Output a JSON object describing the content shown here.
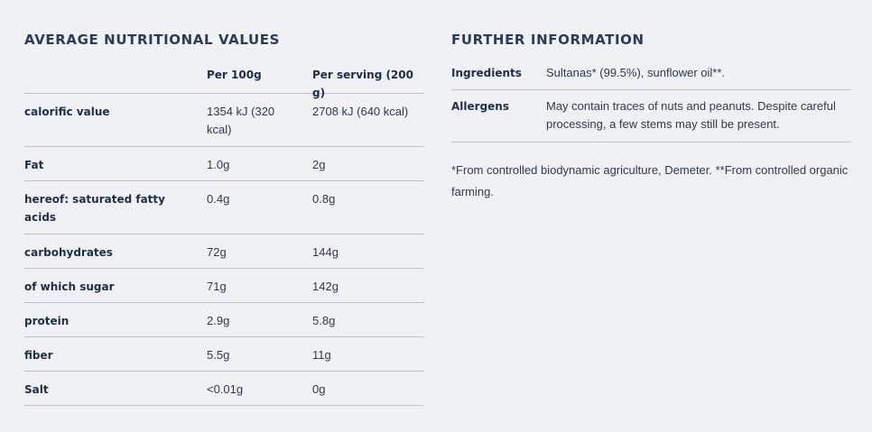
{
  "nutrition": {
    "title": "AVERAGE NUTRITIONAL VALUES",
    "headers": [
      "",
      "Per 100g",
      "Per serving (200 g)"
    ],
    "rows": [
      {
        "name": "calorific value",
        "per100": "1354 kJ (320 kcal)",
        "serving": "2708 kJ (640 kcal)"
      },
      {
        "name": "Fat",
        "per100": "1.0g",
        "serving": "2g"
      },
      {
        "name": "hereof: saturated fatty acids",
        "per100": "0.4g",
        "serving": "0.8g"
      },
      {
        "name": "carbohydrates",
        "per100": "72g",
        "serving": "144g"
      },
      {
        "name": "of which sugar",
        "per100": "71g",
        "serving": "142g"
      },
      {
        "name": "protein",
        "per100": "2.9g",
        "serving": "5.8g"
      },
      {
        "name": "fiber",
        "per100": "5.5g",
        "serving": "11g"
      },
      {
        "name": "Salt",
        "per100": "<0.01g",
        "serving": "0g"
      }
    ]
  },
  "further": {
    "title": "FURTHER INFORMATION",
    "rows": [
      {
        "label": "Ingredients",
        "value": "Sultanas* (99.5%), sunflower oil**."
      },
      {
        "label": "Allergens",
        "value": "May contain traces of nuts and peanuts. Despite careful processing, a few stems may still be present."
      }
    ],
    "footnote": "*From controlled biodynamic agriculture, Demeter. **From controlled organic farming."
  }
}
